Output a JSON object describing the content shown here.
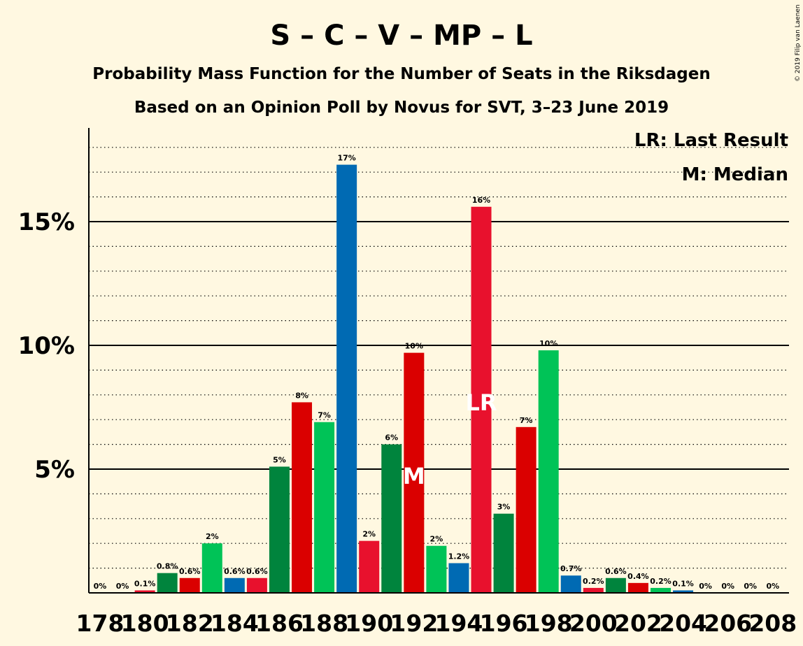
{
  "chart_data": {
    "type": "bar",
    "title": "S – C – V – MP – L",
    "subtitle_lines": [
      "Probability Mass Function for the Number of Seats in the Riksdagen",
      "Based on an Opinion Poll by Novus for SVT, 3–23 June 2019"
    ],
    "copyright": "© 2019 Filip van Laenen",
    "legend": {
      "position": "top-right",
      "lines": [
        "LR: Last Result",
        "M: Median"
      ]
    },
    "xlabel": "",
    "ylabel": "",
    "ylim": [
      0,
      18.9
    ],
    "y_ticks": [
      {
        "value": 5,
        "label": "5%"
      },
      {
        "value": 10,
        "label": "10%"
      },
      {
        "value": 15,
        "label": "15%"
      }
    ],
    "x_tick_labels": [
      "178",
      "180",
      "182",
      "184",
      "186",
      "188",
      "190",
      "192",
      "194",
      "196",
      "198",
      "200",
      "202",
      "204",
      "206",
      "208"
    ],
    "grid": "dotted lines every 1%, solid lines at 5%, 10%, 15%",
    "colors": {
      "blue": "#006AB3",
      "red": "#E8112D",
      "dark_green": "#00843D",
      "red2": "#DA0000",
      "green": "#00C357"
    },
    "categories": [
      178,
      179,
      180,
      181,
      182,
      183,
      184,
      185,
      186,
      187,
      188,
      189,
      190,
      191,
      192,
      193,
      194,
      195,
      196,
      197,
      198,
      199,
      200,
      201,
      202,
      203,
      204,
      205,
      206,
      207,
      208
    ],
    "values": [
      0,
      0,
      0.1,
      0.8,
      0.6,
      2.0,
      0.6,
      0.6,
      5.1,
      7.7,
      6.9,
      17.3,
      2.1,
      6.0,
      9.7,
      1.9,
      1.2,
      15.6,
      3.2,
      6.7,
      9.8,
      0.7,
      0.2,
      0.6,
      0.4,
      0.2,
      0.1,
      0,
      0,
      0,
      0
    ],
    "data_labels": [
      "0%",
      "0%",
      "0.1%",
      "0.8%",
      "0.6%",
      "2%",
      "0.6%",
      "0.6%",
      "5%",
      "8%",
      "7%",
      "17%",
      "2%",
      "6%",
      "10%",
      "2%",
      "1.2%",
      "16%",
      "3%",
      "7%",
      "10%",
      "0.7%",
      "0.2%",
      "0.6%",
      "0.4%",
      "0.2%",
      "0.1%",
      "0%",
      "0%",
      "0%",
      "0%"
    ],
    "bar_colors": [
      "blue",
      "red",
      "red",
      "dark_green",
      "red2",
      "green",
      "blue",
      "red",
      "dark_green",
      "red2",
      "green",
      "blue",
      "red",
      "dark_green",
      "red2",
      "green",
      "blue",
      "red",
      "dark_green",
      "red2",
      "green",
      "blue",
      "red",
      "dark_green",
      "red2",
      "green",
      "blue",
      "red",
      "dark_green",
      "red2",
      "green"
    ],
    "annotations": [
      {
        "category": 192,
        "text": "M"
      },
      {
        "category": 195,
        "text": "LR"
      }
    ]
  }
}
